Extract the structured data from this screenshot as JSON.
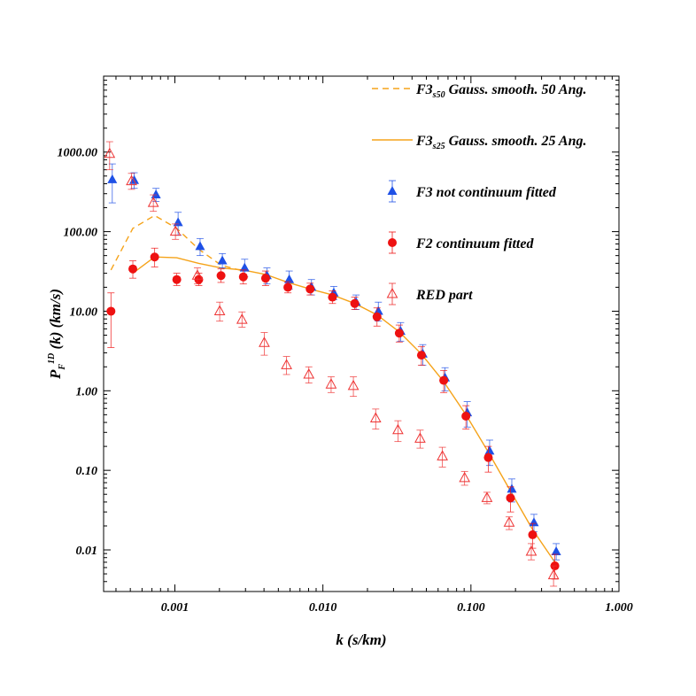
{
  "chart_data": {
    "type": "scatter",
    "xlabel": "k (s/km)",
    "ylabel": {
      "main": "P",
      "sub": "F",
      "sup": "1D",
      "rest": " (k) (km/s)"
    },
    "xscale": "log",
    "yscale": "log",
    "xlim": [
      0.00033,
      1.0
    ],
    "ylim": [
      0.003,
      9000
    ],
    "grid": false,
    "legend_position": "top-right",
    "x_ticks": [
      {
        "value": 0.001,
        "label": "0.001"
      },
      {
        "value": 0.01,
        "label": "0.010"
      },
      {
        "value": 0.1,
        "label": "0.100"
      },
      {
        "value": 1.0,
        "label": "1.000"
      }
    ],
    "y_ticks": [
      {
        "value": 0.01,
        "label": "0.01"
      },
      {
        "value": 0.1,
        "label": "0.10"
      },
      {
        "value": 1,
        "label": "1.00"
      },
      {
        "value": 10,
        "label": "10.00"
      },
      {
        "value": 100,
        "label": "100.00"
      },
      {
        "value": 1000,
        "label": "1000.00"
      }
    ],
    "series": [
      {
        "name": "F3s50 Gauss. smooth. 50 Ang.",
        "legend": {
          "prefix": "F3",
          "sub": "s50",
          "rest": " Gauss. smooth. 50 Ang."
        },
        "style": "dashed-line",
        "color": "#F5A31A",
        "x": [
          0.00037,
          0.00052,
          0.00073,
          0.00103,
          0.00145,
          0.00205,
          0.0029
        ],
        "y": [
          33,
          110,
          160,
          110,
          60,
          38,
          32
        ]
      },
      {
        "name": "F3s25 Gauss. smooth. 25 Ang.",
        "legend": {
          "prefix": "F3",
          "sub": "s25",
          "rest": " Gauss. smooth. 25 Ang."
        },
        "style": "solid-line",
        "color": "#F5A31A",
        "x": [
          0.00052,
          0.00073,
          0.00103,
          0.00145,
          0.00205,
          0.0029,
          0.0041,
          0.0058,
          0.0082,
          0.0116,
          0.0164,
          0.0232,
          0.0328,
          0.0463,
          0.0655,
          0.0925,
          0.131,
          0.185,
          0.261,
          0.369
        ],
        "y": [
          30,
          48,
          47,
          40,
          35,
          33,
          29,
          23,
          19,
          16,
          12.5,
          9,
          5.5,
          2.9,
          1.3,
          0.5,
          0.17,
          0.055,
          0.018,
          0.007
        ]
      },
      {
        "name": "F3 not continuum fitted",
        "style": "filled-triangle",
        "color": "#1E50E6",
        "x": [
          0.00037,
          0.00052,
          0.00073,
          0.00103,
          0.00145,
          0.00205,
          0.0029,
          0.0041,
          0.0058,
          0.0082,
          0.0116,
          0.0164,
          0.0232,
          0.0328,
          0.0463,
          0.0655,
          0.0925,
          0.131,
          0.185,
          0.261,
          0.369
        ],
        "y": [
          450,
          440,
          290,
          130,
          65,
          43,
          35,
          28,
          25,
          20,
          17,
          13,
          10,
          5.6,
          2.9,
          1.45,
          0.53,
          0.175,
          0.058,
          0.022,
          0.0095
        ],
        "err_lo": [
          220,
          90,
          50,
          40,
          15,
          8,
          8,
          6,
          6,
          4,
          3,
          2.5,
          2.5,
          1.4,
          0.8,
          0.45,
          0.18,
          0.06,
          0.018,
          0.005,
          0.002
        ],
        "err_hi": [
          260,
          110,
          60,
          45,
          17,
          10,
          10,
          7,
          7,
          5,
          3.5,
          3,
          3,
          1.6,
          0.9,
          0.5,
          0.2,
          0.065,
          0.02,
          0.006,
          0.0025
        ]
      },
      {
        "name": "F2 continuum fitted",
        "style": "filled-circle",
        "color": "#EE1111",
        "x": [
          0.00037,
          0.00052,
          0.00073,
          0.00103,
          0.00145,
          0.00205,
          0.0029,
          0.0041,
          0.0058,
          0.0082,
          0.0116,
          0.0164,
          0.0232,
          0.0328,
          0.0463,
          0.0655,
          0.0925,
          0.131,
          0.185,
          0.261,
          0.369
        ],
        "y": [
          10,
          34,
          48,
          25,
          25,
          28,
          27,
          26,
          20,
          19,
          15,
          12.5,
          8.5,
          5.3,
          2.8,
          1.35,
          0.48,
          0.145,
          0.045,
          0.0155,
          0.0063
        ],
        "err_lo": [
          6.5,
          8,
          12,
          4,
          4,
          5,
          5,
          5,
          3,
          3,
          2.5,
          2,
          2,
          1.2,
          0.7,
          0.4,
          0.15,
          0.05,
          0.015,
          0.005,
          0.002
        ],
        "err_hi": [
          7,
          9,
          14,
          5,
          5,
          6,
          6,
          6,
          3.5,
          3.5,
          3,
          2.5,
          2.5,
          1.4,
          0.8,
          0.45,
          0.17,
          0.055,
          0.017,
          0.006,
          0.0025
        ]
      },
      {
        "name": "RED part",
        "style": "open-triangle",
        "color": "#EE3333",
        "x": [
          0.00037,
          0.00052,
          0.00073,
          0.00103,
          0.00145,
          0.00205,
          0.0029,
          0.0041,
          0.0058,
          0.0082,
          0.0116,
          0.0164,
          0.0232,
          0.0328,
          0.0463,
          0.0655,
          0.0925,
          0.131,
          0.185,
          0.261,
          0.369
        ],
        "y": [
          950,
          430,
          230,
          100,
          28,
          10,
          7.8,
          4,
          2.1,
          1.6,
          1.2,
          1.15,
          0.45,
          0.32,
          0.25,
          0.15,
          0.08,
          0.045,
          0.022,
          0.0095,
          0.0048
        ],
        "err_lo": [
          350,
          90,
          50,
          20,
          6,
          2.5,
          1.5,
          1.2,
          0.5,
          0.35,
          0.25,
          0.3,
          0.12,
          0.09,
          0.06,
          0.04,
          0.015,
          0.007,
          0.004,
          0.002,
          0.0013
        ],
        "err_hi": [
          400,
          110,
          60,
          25,
          7,
          3,
          2,
          1.4,
          0.6,
          0.4,
          0.3,
          0.35,
          0.14,
          0.1,
          0.07,
          0.045,
          0.017,
          0.008,
          0.004,
          0.0025,
          0.0015
        ]
      }
    ]
  }
}
